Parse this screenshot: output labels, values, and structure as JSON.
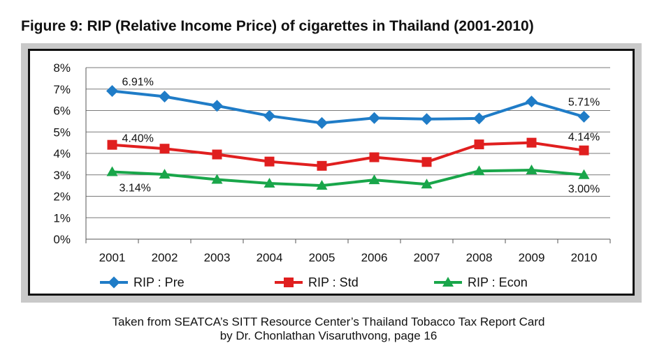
{
  "figure_title": "Figure 9: RIP (Relative Income Price) of cigarettes in Thailand (2001-2010)",
  "caption": {
    "line1": "Taken from SEATCA’s SITT Resource Center’s Thailand Tobacco Tax Report Card",
    "line2": "by Dr. Chonlathan Visaruthvong, page 16"
  },
  "chart_data": {
    "type": "line",
    "title": "",
    "xlabel": "",
    "ylabel": "",
    "categories": [
      "2001",
      "2002",
      "2003",
      "2004",
      "2005",
      "2006",
      "2007",
      "2008",
      "2009",
      "2010"
    ],
    "ylim": [
      0,
      8
    ],
    "yticks": [
      "0%",
      "1%",
      "2%",
      "3%",
      "4%",
      "5%",
      "6%",
      "7%",
      "8%"
    ],
    "grid": true,
    "legend_position": "bottom",
    "series": [
      {
        "name": "RIP : Pre",
        "color": "#1f7cc7",
        "marker": "diamond",
        "values": [
          6.91,
          6.65,
          6.22,
          5.75,
          5.42,
          5.65,
          5.6,
          5.63,
          6.42,
          5.71
        ],
        "labels": [
          "6.91%",
          "",
          "",
          "",
          "",
          "",
          "",
          "",
          "",
          "5.71%"
        ]
      },
      {
        "name": "RIP : Std",
        "color": "#e01f1f",
        "marker": "square",
        "values": [
          4.4,
          4.22,
          3.95,
          3.62,
          3.42,
          3.82,
          3.6,
          4.42,
          4.5,
          4.14
        ],
        "labels": [
          "4.40%",
          "",
          "",
          "",
          "",
          "",
          "",
          "",
          "",
          "4.14%"
        ]
      },
      {
        "name": "RIP : Econ",
        "color": "#19a64a",
        "marker": "triangle",
        "values": [
          3.14,
          3.02,
          2.78,
          2.6,
          2.5,
          2.76,
          2.56,
          3.18,
          3.22,
          3.0
        ],
        "labels": [
          "3.14%",
          "",
          "",
          "",
          "",
          "",
          "",
          "",
          "",
          "3.00%"
        ]
      }
    ]
  }
}
